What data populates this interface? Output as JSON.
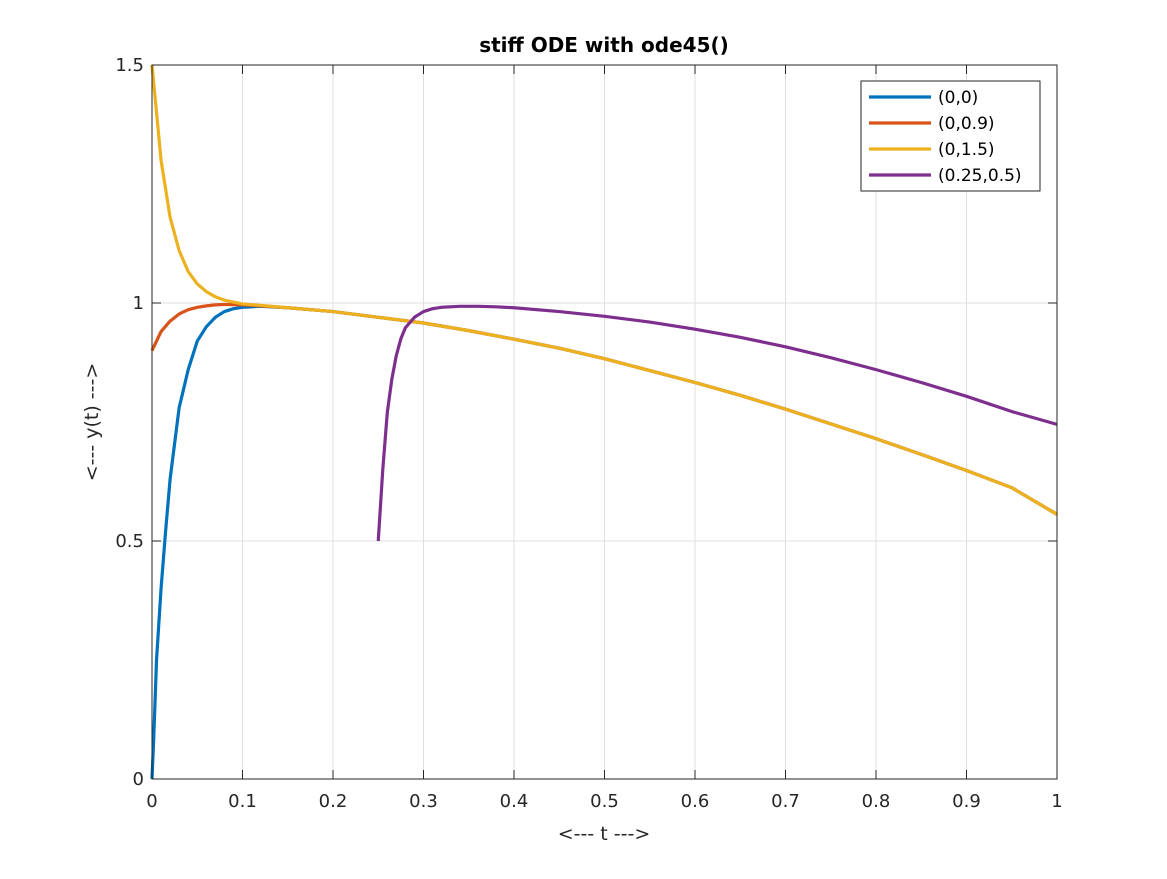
{
  "chart_data": {
    "type": "line",
    "title": "stiff ODE with ode45()",
    "xlabel": "<---  t  --->",
    "ylabel": "<---  y(t)  --->",
    "xlim": [
      0,
      1
    ],
    "ylim": [
      0,
      1.5
    ],
    "xticks": [
      0,
      0.1,
      0.2,
      0.3,
      0.4,
      0.5,
      0.6,
      0.7,
      0.8,
      0.9,
      1
    ],
    "xtick_labels": [
      "0",
      "0.1",
      "0.2",
      "0.3",
      "0.4",
      "0.5",
      "0.6",
      "0.7",
      "0.8",
      "0.9",
      "1"
    ],
    "yticks": [
      0,
      0.5,
      1,
      1.5
    ],
    "ytick_labels": [
      "0",
      "0.5",
      "1",
      "1.5"
    ],
    "grid": true,
    "legend_position": "top-right",
    "series": [
      {
        "name": "(0,0)",
        "color": "#0072bd",
        "x": [
          0,
          0.002,
          0.005,
          0.01,
          0.015,
          0.02,
          0.03,
          0.04,
          0.05,
          0.06,
          0.07,
          0.08,
          0.09,
          0.1,
          0.12,
          0.15,
          0.2,
          0.25,
          0.3,
          0.35,
          0.4,
          0.45,
          0.5,
          0.55,
          0.6,
          0.65,
          0.7,
          0.75,
          0.8,
          0.85,
          0.9,
          0.95,
          1.0
        ],
        "y": [
          0,
          0.09,
          0.25,
          0.4,
          0.52,
          0.63,
          0.78,
          0.86,
          0.92,
          0.95,
          0.97,
          0.982,
          0.988,
          0.991,
          0.993,
          0.99,
          0.982,
          0.97,
          0.958,
          0.942,
          0.924,
          0.905,
          0.883,
          0.858,
          0.833,
          0.806,
          0.777,
          0.746,
          0.715,
          0.682,
          0.648,
          0.612,
          0.556
        ]
      },
      {
        "name": "(0,0.9)",
        "color": "#d95319",
        "x": [
          0,
          0.005,
          0.01,
          0.02,
          0.03,
          0.04,
          0.05,
          0.06,
          0.07,
          0.08,
          0.1,
          0.12,
          0.15,
          0.2,
          0.25,
          0.3,
          0.35,
          0.4,
          0.45,
          0.5,
          0.55,
          0.6,
          0.65,
          0.7,
          0.75,
          0.8,
          0.85,
          0.9,
          0.95,
          1.0
        ],
        "y": [
          0.9,
          0.92,
          0.94,
          0.962,
          0.977,
          0.986,
          0.991,
          0.994,
          0.996,
          0.997,
          0.996,
          0.994,
          0.99,
          0.982,
          0.97,
          0.958,
          0.942,
          0.924,
          0.905,
          0.883,
          0.858,
          0.833,
          0.806,
          0.777,
          0.746,
          0.715,
          0.682,
          0.648,
          0.612,
          0.556
        ]
      },
      {
        "name": "(0,1.5)",
        "color": "#edb120",
        "x": [
          0,
          0.005,
          0.01,
          0.02,
          0.03,
          0.04,
          0.05,
          0.06,
          0.07,
          0.08,
          0.09,
          0.1,
          0.12,
          0.15,
          0.2,
          0.25,
          0.3,
          0.35,
          0.4,
          0.45,
          0.5,
          0.55,
          0.6,
          0.65,
          0.7,
          0.75,
          0.8,
          0.85,
          0.9,
          0.95,
          1.0
        ],
        "y": [
          1.5,
          1.4,
          1.3,
          1.18,
          1.11,
          1.066,
          1.04,
          1.024,
          1.013,
          1.006,
          1.002,
          0.998,
          0.995,
          0.99,
          0.982,
          0.97,
          0.958,
          0.942,
          0.924,
          0.905,
          0.883,
          0.858,
          0.833,
          0.806,
          0.777,
          0.746,
          0.715,
          0.682,
          0.648,
          0.612,
          0.556
        ]
      },
      {
        "name": "(0.25,0.5)",
        "color": "#7e2f8e",
        "x": [
          0.25,
          0.255,
          0.26,
          0.265,
          0.27,
          0.275,
          0.28,
          0.29,
          0.3,
          0.31,
          0.32,
          0.33,
          0.34,
          0.35,
          0.36,
          0.38,
          0.4,
          0.45,
          0.5,
          0.55,
          0.6,
          0.65,
          0.7,
          0.75,
          0.8,
          0.85,
          0.9,
          0.95,
          1.0
        ],
        "y": [
          0.5,
          0.65,
          0.77,
          0.84,
          0.89,
          0.925,
          0.948,
          0.97,
          0.982,
          0.988,
          0.991,
          0.992,
          0.993,
          0.993,
          0.993,
          0.992,
          0.99,
          0.982,
          0.972,
          0.96,
          0.945,
          0.928,
          0.908,
          0.885,
          0.86,
          0.833,
          0.804,
          0.772,
          0.745
        ]
      }
    ]
  }
}
